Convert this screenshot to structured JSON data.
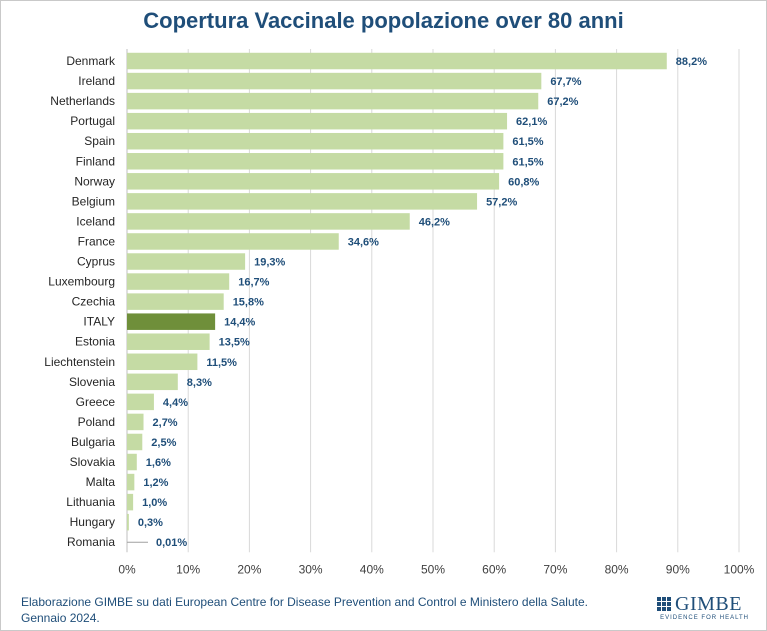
{
  "header": {
    "title": "Copertura Vaccinale popolazione over 80 anni"
  },
  "footer": {
    "line1": "Elaborazione GIMBE su dati European Centre for Disease Prevention and Control e Ministero della Salute.",
    "line2": "Gennaio 2024."
  },
  "logo": {
    "name": "GIMBE",
    "tagline": "EVIDENCE FOR HEALTH"
  },
  "colors": {
    "bar": "#c5dba4",
    "highlight": "#6f8f3a",
    "label": "#1f4e79",
    "grid": "#d9d9d9"
  },
  "chart_data": {
    "type": "bar",
    "orientation": "horizontal",
    "title": "Copertura Vaccinale popolazione over 80 anni",
    "categories": [
      "Denmark",
      "Ireland",
      "Netherlands",
      "Portugal",
      "Spain",
      "Finland",
      "Norway",
      "Belgium",
      "Iceland",
      "France",
      "Cyprus",
      "Luxembourg",
      "Czechia",
      "ITALY",
      "Estonia",
      "Liechtenstein",
      "Slovenia",
      "Greece",
      "Poland",
      "Bulgaria",
      "Slovakia",
      "Malta",
      "Lithuania",
      "Hungary",
      "Romania"
    ],
    "values": [
      88.2,
      67.7,
      67.2,
      62.1,
      61.5,
      61.5,
      60.8,
      57.2,
      46.2,
      34.6,
      19.3,
      16.7,
      15.8,
      14.4,
      13.5,
      11.5,
      8.3,
      4.4,
      2.7,
      2.5,
      1.6,
      1.2,
      1.0,
      0.3,
      0.01
    ],
    "value_labels": [
      "88,2%",
      "67,7%",
      "67,2%",
      "62,1%",
      "61,5%",
      "61,5%",
      "60,8%",
      "57,2%",
      "46,2%",
      "34,6%",
      "19,3%",
      "16,7%",
      "15,8%",
      "14,4%",
      "13,5%",
      "11,5%",
      "8,3%",
      "4,4%",
      "2,7%",
      "2,5%",
      "1,6%",
      "1,2%",
      "1,0%",
      "0,3%",
      "0,01%"
    ],
    "highlight": "ITALY",
    "xlim": [
      0,
      100
    ],
    "xticks": [
      0,
      10,
      20,
      30,
      40,
      50,
      60,
      70,
      80,
      90,
      100
    ],
    "xtick_labels": [
      "0%",
      "10%",
      "20%",
      "30%",
      "40%",
      "50%",
      "60%",
      "70%",
      "80%",
      "90%",
      "100%"
    ],
    "grid": true
  }
}
